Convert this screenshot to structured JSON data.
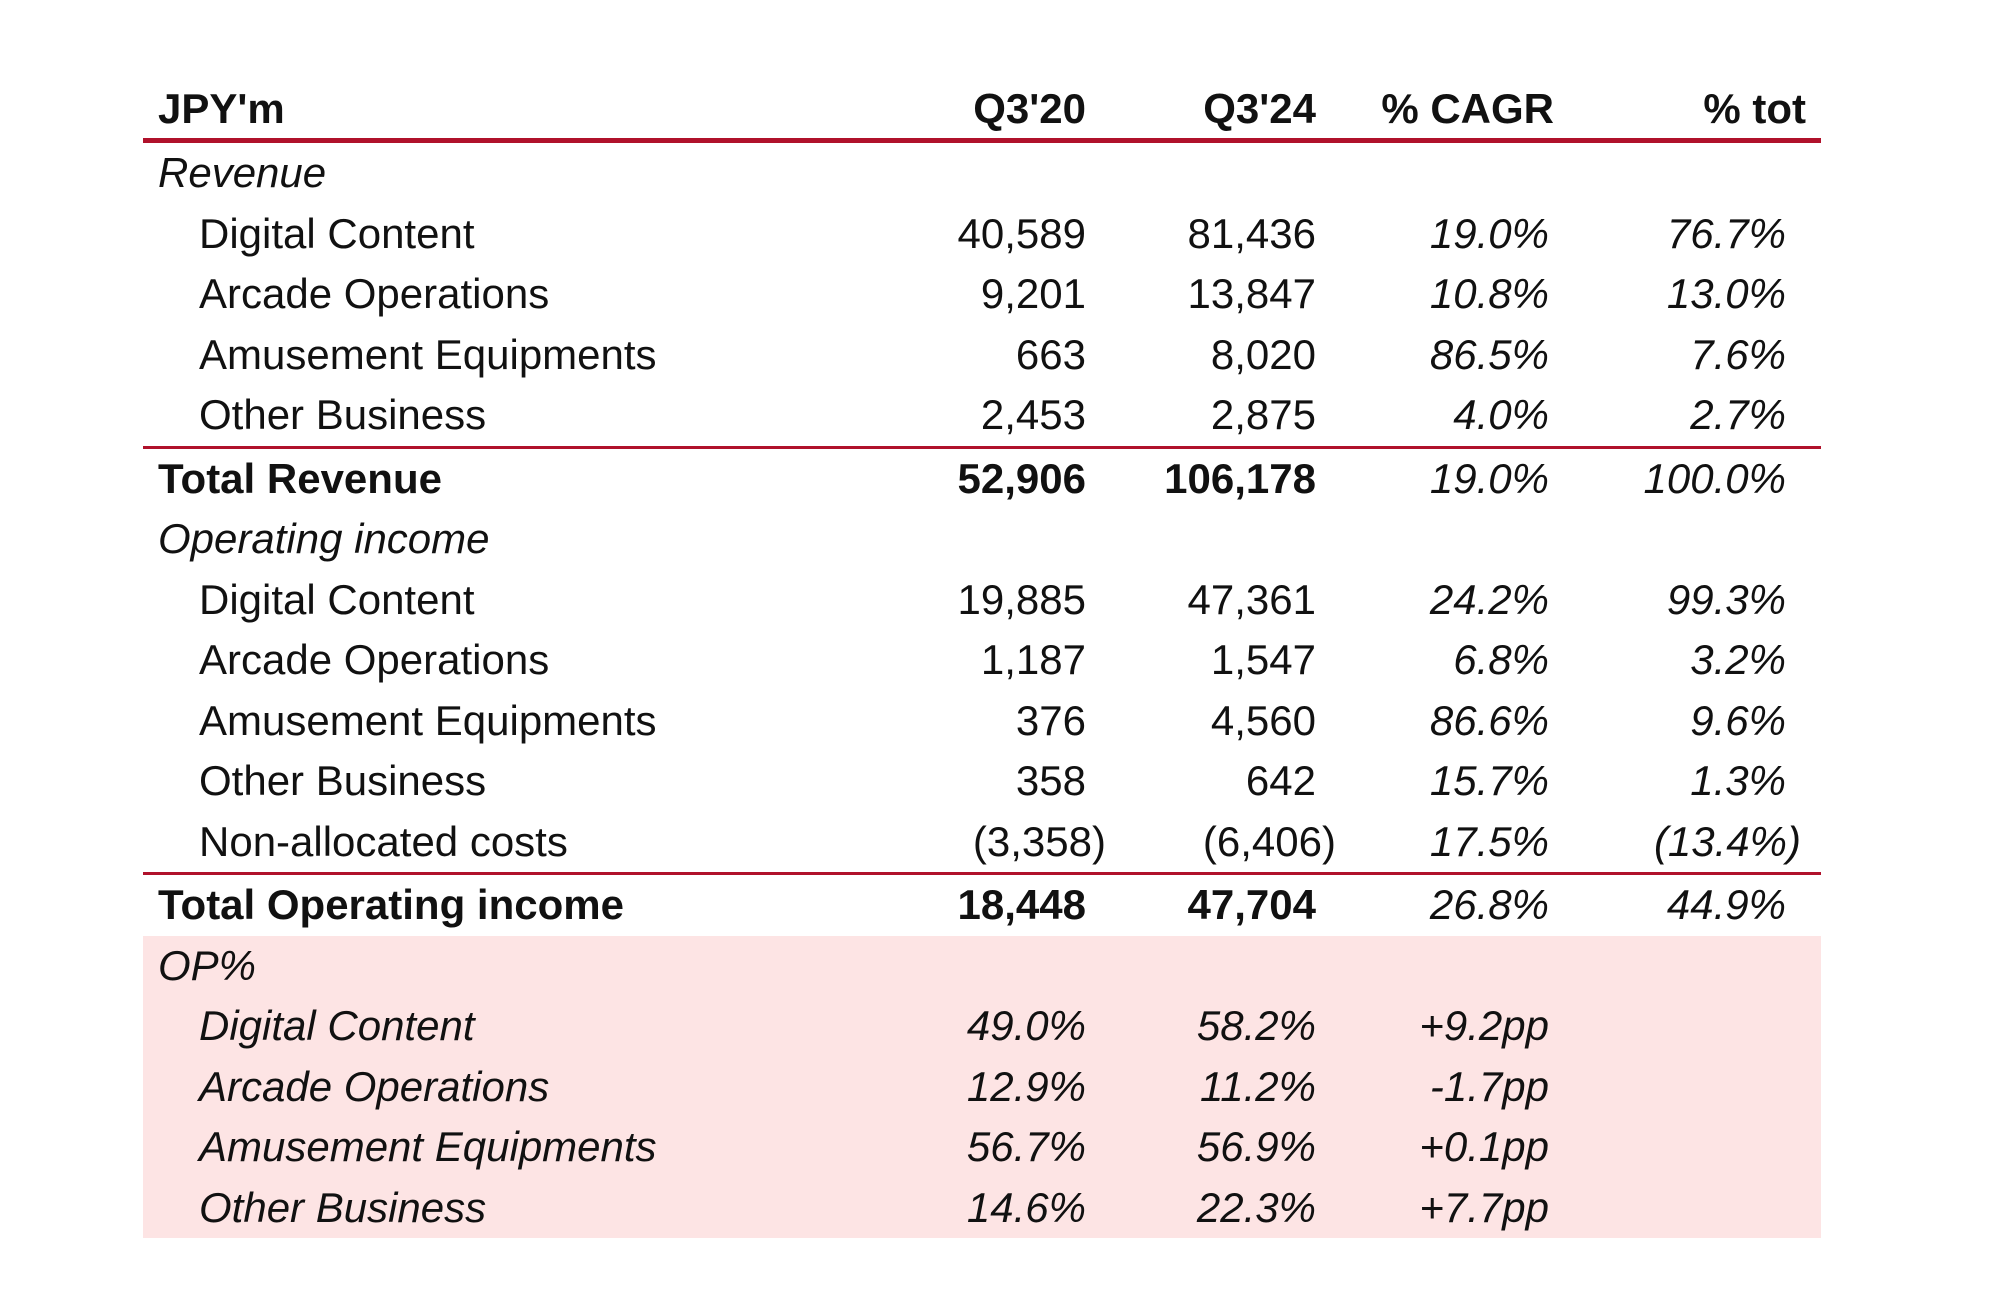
{
  "header": {
    "unit": "JPY'm",
    "col_q20": "Q3'20",
    "col_q24": "Q3'24",
    "col_cagr": "% CAGR",
    "col_tot": "% tot"
  },
  "revenue": {
    "section_label": "Revenue",
    "rows": [
      {
        "label": "Digital Content",
        "q20": "40,589",
        "q24": "81,436",
        "cagr": "19.0%",
        "tot": "76.7%"
      },
      {
        "label": "Arcade Operations",
        "q20": "9,201",
        "q24": "13,847",
        "cagr": "10.8%",
        "tot": "13.0%"
      },
      {
        "label": "Amusement Equipments",
        "q20": "663",
        "q24": "8,020",
        "cagr": "86.5%",
        "tot": "7.6%"
      },
      {
        "label": "Other Business",
        "q20": "2,453",
        "q24": "2,875",
        "cagr": "4.0%",
        "tot": "2.7%"
      }
    ],
    "total": {
      "label": "Total Revenue",
      "q20": "52,906",
      "q24": "106,178",
      "cagr": "19.0%",
      "tot": "100.0%"
    }
  },
  "operating_income": {
    "section_label": "Operating income",
    "rows": [
      {
        "label": "Digital Content",
        "q20": "19,885",
        "q24": "47,361",
        "cagr": "24.2%",
        "tot": "99.3%"
      },
      {
        "label": "Arcade Operations",
        "q20": "1,187",
        "q24": "1,547",
        "cagr": "6.8%",
        "tot": "3.2%"
      },
      {
        "label": "Amusement Equipments",
        "q20": "376",
        "q24": "4,560",
        "cagr": "86.6%",
        "tot": "9.6%"
      },
      {
        "label": "Other Business",
        "q20": "358",
        "q24": "642",
        "cagr": "15.7%",
        "tot": "1.3%"
      },
      {
        "label": "Non-allocated costs",
        "q20": "(3,358)",
        "q24": "(6,406)",
        "cagr": "17.5%",
        "tot": "(13.4%)"
      }
    ],
    "total": {
      "label": "Total Operating income",
      "q20": "18,448",
      "q24": "47,704",
      "cagr": "26.8%",
      "tot": "44.9%"
    }
  },
  "op_margin": {
    "section_label": "OP%",
    "rows": [
      {
        "label": "Digital Content",
        "q20": "49.0%",
        "q24": "58.2%",
        "change": "+9.2pp"
      },
      {
        "label": "Arcade Operations",
        "q20": "12.9%",
        "q24": "11.2%",
        "change": "-1.7pp"
      },
      {
        "label": "Amusement Equipments",
        "q20": "56.7%",
        "q24": "56.9%",
        "change": "+0.1pp"
      },
      {
        "label": "Other Business",
        "q20": "14.6%",
        "q24": "22.3%",
        "change": "+7.7pp"
      }
    ]
  },
  "colors": {
    "rule": "#b0112b",
    "op_band": "#fde4e4"
  }
}
